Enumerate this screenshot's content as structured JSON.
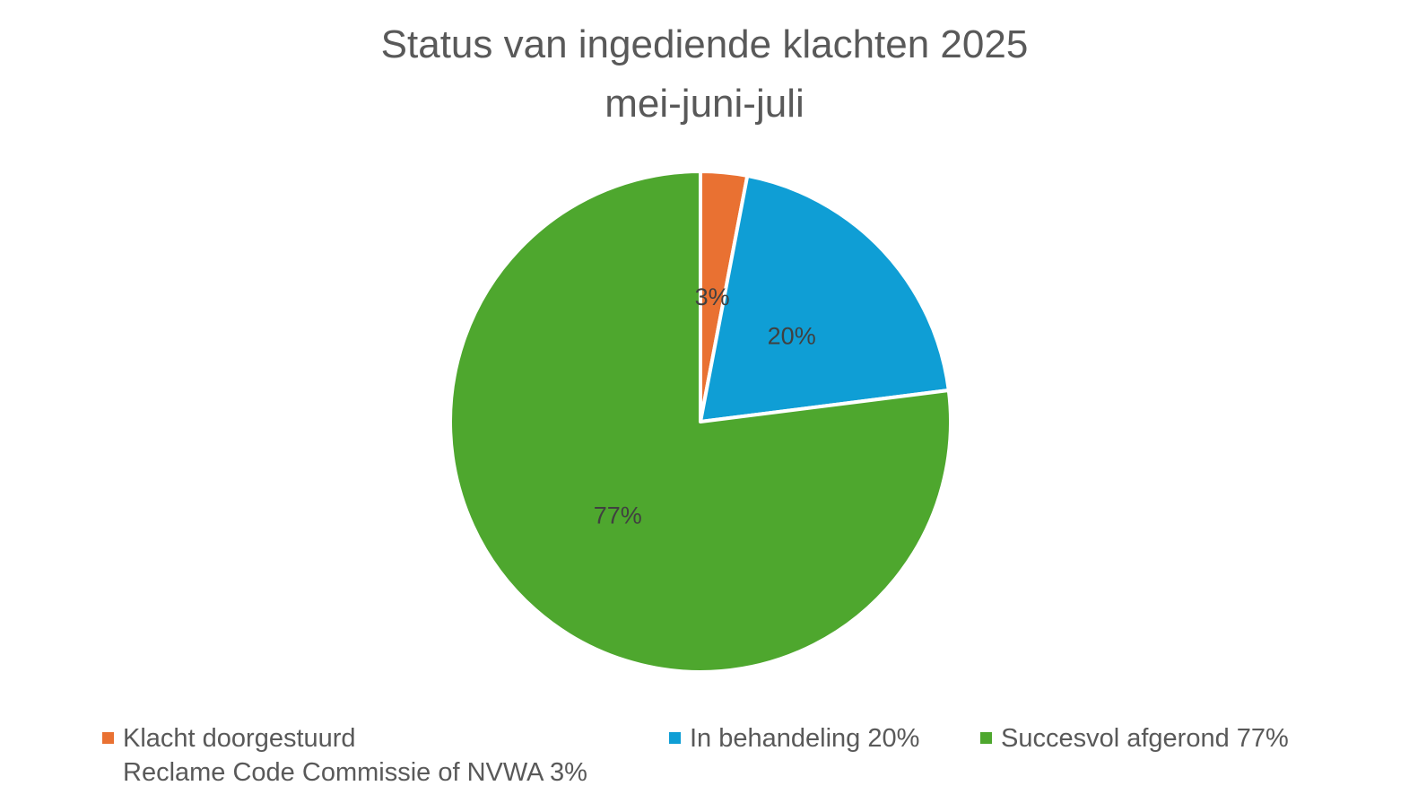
{
  "chart_data": {
    "type": "pie",
    "title": "Status van ingediende klachten 2025",
    "subtitle": "mei-juni-juli",
    "slices": [
      {
        "label_lines": [
          "Klacht doorgestuurd",
          "Reclame Code Commissie of NVWA 3%"
        ],
        "value": 3,
        "data_label": "3%",
        "color": "#E97132"
      },
      {
        "label_lines": [
          "In behandeling 20%"
        ],
        "value": 20,
        "data_label": "20%",
        "color": "#0F9ED5"
      },
      {
        "label_lines": [
          "Succesvol afgerond 77%"
        ],
        "value": 77,
        "data_label": "77%",
        "color": "#4EA72E"
      }
    ],
    "legend_position": "bottom"
  }
}
